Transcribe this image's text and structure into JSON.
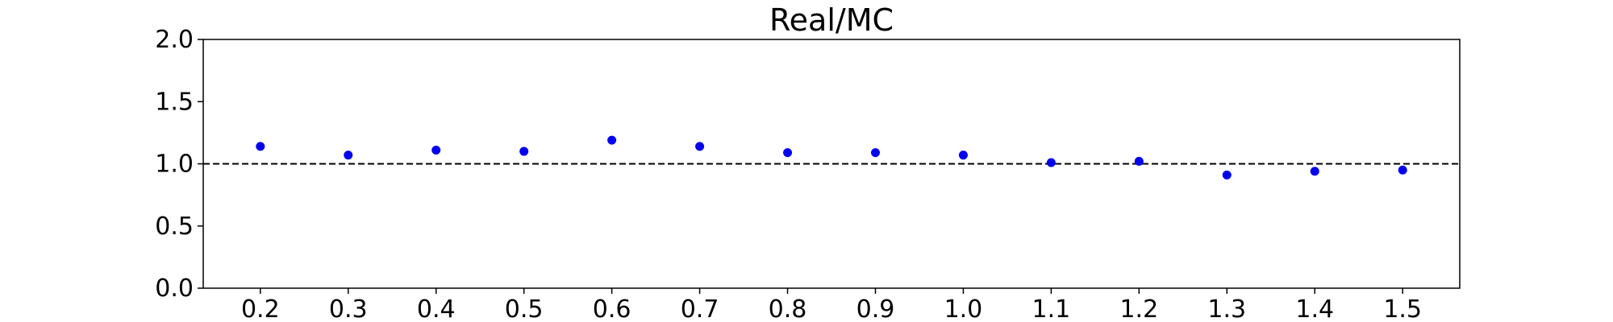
{
  "chart_data": {
    "type": "scatter",
    "title": "Real/MC",
    "xlabel": "",
    "ylabel": "",
    "x": [
      0.2,
      0.3,
      0.4,
      0.5,
      0.6,
      0.7,
      0.8,
      0.9,
      1.0,
      1.1,
      1.2,
      1.3,
      1.4,
      1.5
    ],
    "y": [
      1.14,
      1.07,
      1.11,
      1.1,
      1.19,
      1.14,
      1.09,
      1.09,
      1.07,
      1.01,
      1.02,
      0.91,
      0.94,
      0.95
    ],
    "xlim": [
      0.135,
      1.565
    ],
    "ylim": [
      0.0,
      2.0
    ],
    "xticks": [
      "0.2",
      "0.3",
      "0.4",
      "0.5",
      "0.6",
      "0.7",
      "0.8",
      "0.9",
      "1.0",
      "1.1",
      "1.2",
      "1.3",
      "1.4",
      "1.5"
    ],
    "yticks": [
      "0.0",
      "0.5",
      "1.0",
      "1.5",
      "2.0"
    ],
    "reference_line": {
      "y": 1.0,
      "style": "dashed",
      "color": "#000000"
    },
    "marker_color": "#0000ee",
    "grid": false,
    "legend": "none"
  }
}
